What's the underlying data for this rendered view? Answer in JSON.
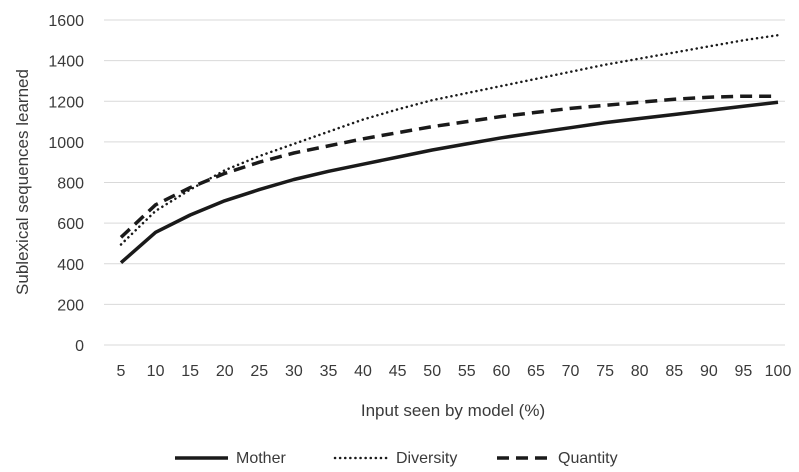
{
  "chart_data": {
    "type": "line",
    "title": "",
    "xlabel": "Input seen by model (%)",
    "ylabel": "Sublexical sequences learned",
    "x": [
      5,
      10,
      15,
      20,
      25,
      30,
      35,
      40,
      45,
      50,
      55,
      60,
      65,
      70,
      75,
      80,
      85,
      90,
      95,
      100
    ],
    "ylim": [
      0,
      1600
    ],
    "yticks": [
      0,
      200,
      400,
      600,
      800,
      1000,
      1200,
      1400,
      1600
    ],
    "grid": true,
    "legend_position": "bottom",
    "series": [
      {
        "name": "Mother",
        "style": "solid",
        "color": "#1a1a1a",
        "values": [
          405,
          555,
          640,
          710,
          765,
          815,
          855,
          890,
          925,
          960,
          990,
          1020,
          1045,
          1070,
          1095,
          1115,
          1135,
          1155,
          1175,
          1195
        ]
      },
      {
        "name": "Diversity",
        "style": "dotted",
        "color": "#1a1a1a",
        "values": [
          495,
          660,
          765,
          860,
          930,
          990,
          1050,
          1110,
          1160,
          1205,
          1240,
          1275,
          1310,
          1345,
          1380,
          1410,
          1440,
          1470,
          1500,
          1525
        ]
      },
      {
        "name": "Quantity",
        "style": "dashed",
        "color": "#1a1a1a",
        "values": [
          530,
          690,
          775,
          845,
          900,
          945,
          980,
          1015,
          1045,
          1075,
          1100,
          1125,
          1145,
          1165,
          1180,
          1195,
          1210,
          1220,
          1225,
          1225
        ]
      }
    ]
  }
}
